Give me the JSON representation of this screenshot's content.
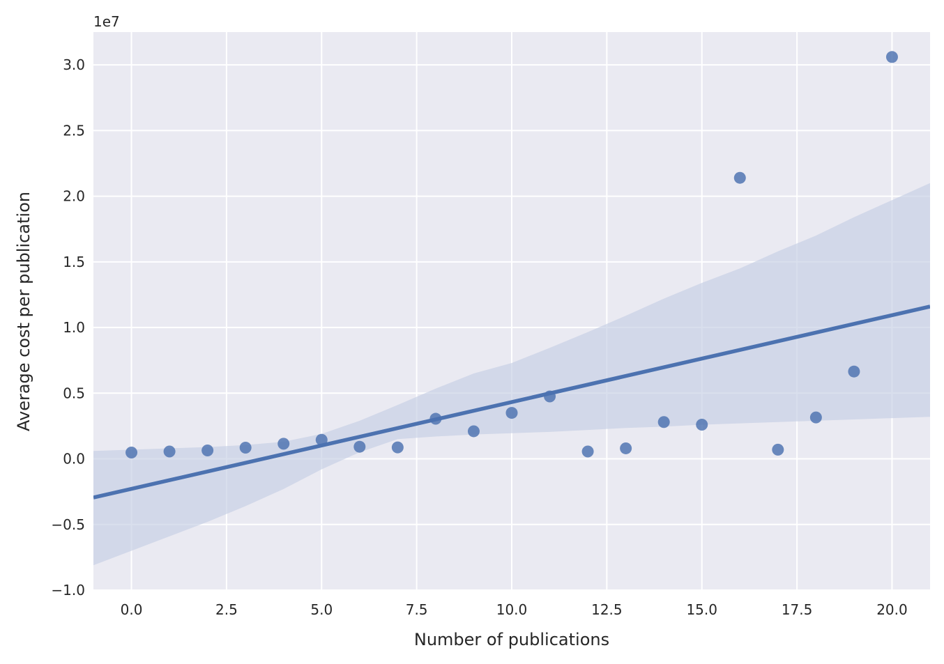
{
  "chart_data": {
    "type": "scatter",
    "title": "",
    "xlabel": "Number of publications",
    "ylabel": "Average cost per publication",
    "y_offset_label": "1e7",
    "xlim": [
      -1,
      21
    ],
    "ylim": [
      -10000000,
      32500000
    ],
    "grid": true,
    "x_ticks": [
      0,
      2.5,
      5,
      7.5,
      10,
      12.5,
      15,
      17.5,
      20
    ],
    "x_tick_labels": [
      "0.0",
      "2.5",
      "5.0",
      "7.5",
      "10.0",
      "12.5",
      "15.0",
      "17.5",
      "20.0"
    ],
    "y_ticks": [
      -10000000,
      -5000000,
      0,
      5000000,
      10000000,
      15000000,
      20000000,
      25000000,
      30000000
    ],
    "y_tick_labels": [
      "−1.0",
      "−0.5",
      "0.0",
      "0.5",
      "1.0",
      "1.5",
      "2.0",
      "2.5",
      "3.0"
    ],
    "points": {
      "x": [
        0,
        1,
        2,
        3,
        4,
        5,
        6,
        7,
        8,
        9,
        10,
        11,
        12,
        13,
        14,
        15,
        16,
        17,
        18,
        19,
        20
      ],
      "y": [
        480000,
        560000,
        640000,
        850000,
        1150000,
        1450000,
        920000,
        870000,
        3050000,
        2100000,
        3500000,
        4750000,
        560000,
        800000,
        2800000,
        2600000,
        21400000,
        700000,
        3150000,
        6650000,
        30600000
      ]
    },
    "regression_line": {
      "x": [
        -1,
        21
      ],
      "y": [
        -2950000,
        11600000
      ]
    },
    "confidence_band": {
      "x": [
        -1,
        0,
        1,
        2,
        3,
        4,
        5,
        6,
        7,
        8,
        9,
        10,
        11,
        12,
        13,
        14,
        15,
        16,
        17,
        18,
        19,
        20,
        21
      ],
      "lower": [
        -8100000,
        -7000000,
        -5900000,
        -4800000,
        -3600000,
        -2300000,
        -800000,
        500000,
        1500000,
        1700000,
        1850000,
        1950000,
        2050000,
        2200000,
        2350000,
        2450000,
        2600000,
        2700000,
        2800000,
        2900000,
        3000000,
        3100000,
        3200000
      ],
      "upper": [
        600000,
        700000,
        800000,
        900000,
        1050000,
        1300000,
        1900000,
        2900000,
        4100000,
        5350000,
        6500000,
        7300000,
        8450000,
        9650000,
        10900000,
        12200000,
        13400000,
        14500000,
        15800000,
        17000000,
        18400000,
        19700000,
        21000000
      ]
    },
    "colors": {
      "background": "#eaeaf2",
      "grid": "#ffffff",
      "points": "#4c72b0",
      "line": "#4c72b0",
      "band": "#c5cee4"
    }
  }
}
